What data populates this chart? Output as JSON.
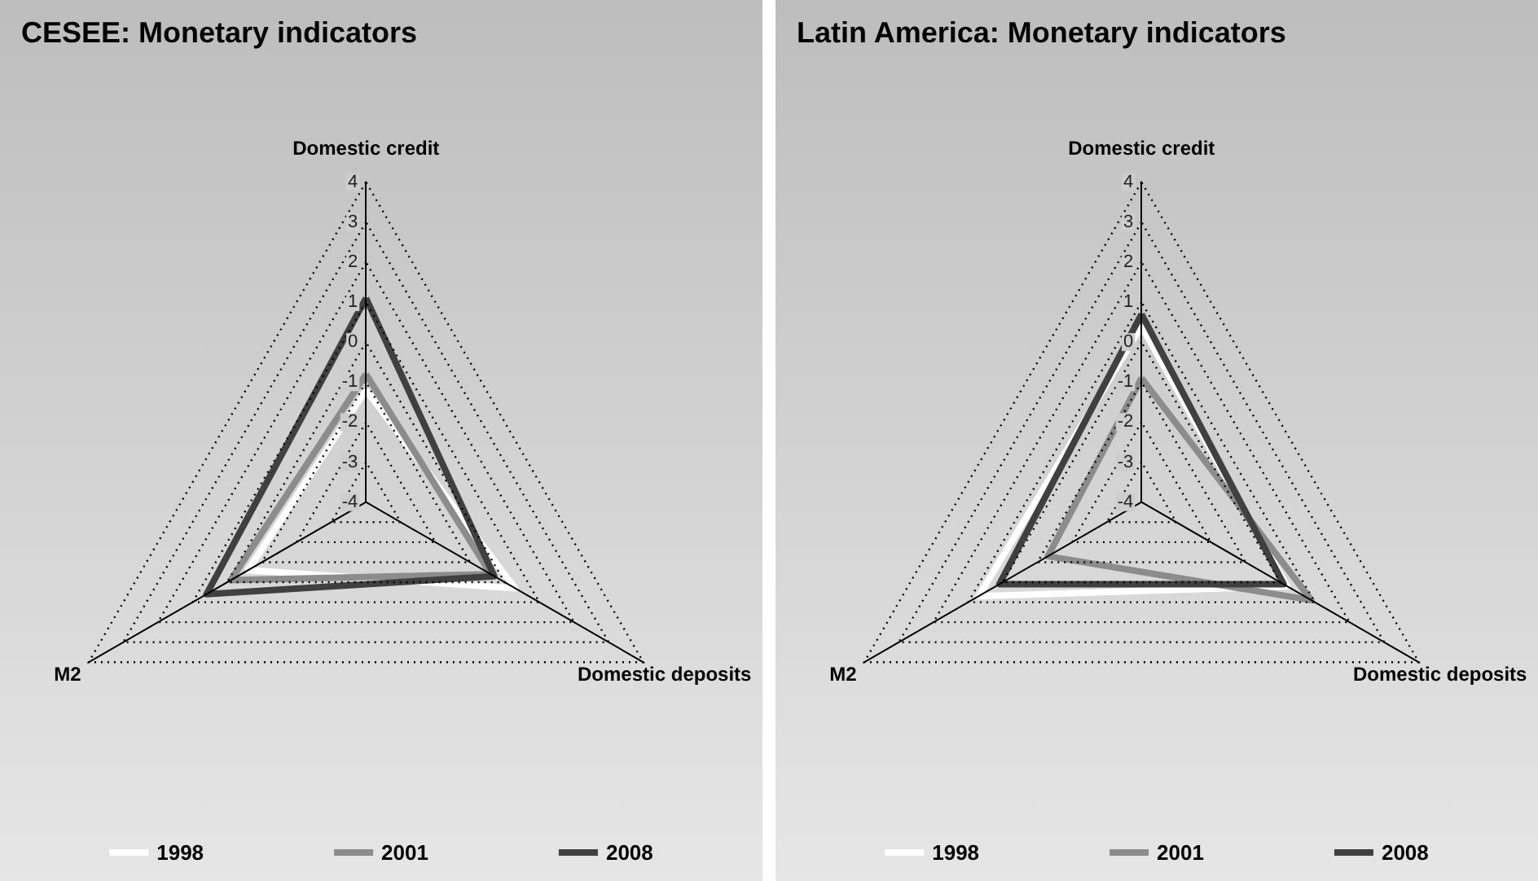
{
  "chart_data": [
    {
      "type": "radar",
      "title": "CESEE: Monetary indicators",
      "categories": [
        "Domestic credit",
        "Domestic deposits",
        "M2"
      ],
      "ylim": [
        -4,
        4
      ],
      "yticks": [
        -4,
        -3,
        -2,
        -1,
        0,
        1,
        2,
        3,
        4
      ],
      "grid": true,
      "legend": "bottom",
      "line_style": "solid",
      "marker": "none",
      "series": [
        {
          "name": "1998",
          "color": "#ffffff",
          "values": [
            -1.2,
            0.3,
            -0.6
          ]
        },
        {
          "name": "2001",
          "color": "#8c8c8c",
          "values": [
            -0.8,
            -0.4,
            -0.1
          ]
        },
        {
          "name": "2008",
          "color": "#404040",
          "values": [
            1.1,
            -0.3,
            0.6
          ]
        }
      ]
    },
    {
      "type": "radar",
      "title": "Latin America: Monetary indicators",
      "categories": [
        "Domestic credit",
        "Domestic deposits",
        "M2"
      ],
      "ylim": [
        -4,
        4
      ],
      "yticks": [
        -4,
        -3,
        -2,
        -1,
        0,
        1,
        2,
        3,
        4
      ],
      "grid": true,
      "legend": "bottom",
      "line_style": "solid",
      "marker": "none",
      "series": [
        {
          "name": "1998",
          "color": "#ffffff",
          "values": [
            0.4,
            0.2,
            0.7
          ]
        },
        {
          "name": "2001",
          "color": "#8c8c8c",
          "values": [
            -0.9,
            0.9,
            -1.3
          ]
        },
        {
          "name": "2008",
          "color": "#404040",
          "values": [
            0.7,
            0.1,
            0.1
          ]
        }
      ]
    }
  ]
}
